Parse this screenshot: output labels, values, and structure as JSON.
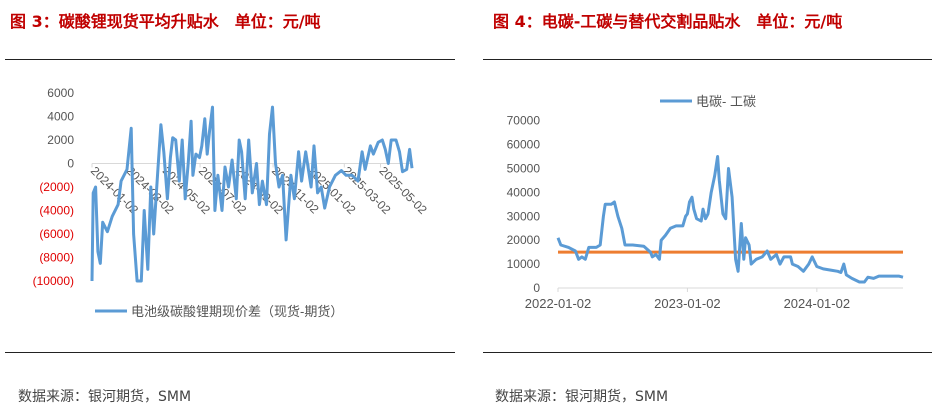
{
  "panels": [
    {
      "title": "图 3：碳酸锂现货平均升贴水　单位：元/吨",
      "source": "数据来源：银河期货，SMM"
    },
    {
      "title": "图 4：电碳-工碳与替代交割品贴水　单位：元/吨",
      "source": "数据来源：银河期货，SMM"
    }
  ],
  "chart_data": [
    {
      "type": "line",
      "ylim": [
        -10000,
        6000
      ],
      "yticks": [
        "6000",
        "4000",
        "2000",
        "0",
        "(2000)",
        "(4000)",
        "(6000)",
        "(8000)",
        "(10000)"
      ],
      "ytick_values": [
        6000,
        4000,
        2000,
        0,
        -2000,
        -4000,
        -6000,
        -8000,
        -10000
      ],
      "negative_tick_color": "#e00000",
      "xticks": [
        "2024-01-02",
        "2024-03-02",
        "2024-05-02",
        "2024-07-02",
        "2024-09-02",
        "2024-11-02",
        "2025-01-02",
        "2025-03-02",
        "2025-05-02"
      ],
      "xlim": [
        "2024-01-02",
        "2025-06-24"
      ],
      "legend": "bottom",
      "series": [
        {
          "name": "电池级碳酸锂期现价差（现货-期货）",
          "color": "#5b9bd5",
          "points": [
            [
              "2024-01-02",
              -10000
            ],
            [
              "2024-01-04",
              -2500
            ],
            [
              "2024-01-08",
              -2000
            ],
            [
              "2024-01-12",
              -7500
            ],
            [
              "2024-01-16",
              -8500
            ],
            [
              "2024-01-20",
              -5000
            ],
            [
              "2024-01-28",
              -5800
            ],
            [
              "2024-02-05",
              -4500
            ],
            [
              "2024-02-15",
              -3500
            ],
            [
              "2024-02-20",
              -1500
            ],
            [
              "2024-03-01",
              -500
            ],
            [
              "2024-03-08",
              3000
            ],
            [
              "2024-03-12",
              -6000
            ],
            [
              "2024-03-18",
              -10000
            ],
            [
              "2024-03-25",
              -10000
            ],
            [
              "2024-03-30",
              -4000
            ],
            [
              "2024-04-05",
              -9000
            ],
            [
              "2024-04-10",
              -2000
            ],
            [
              "2024-04-15",
              -6000
            ],
            [
              "2024-04-22",
              -500
            ],
            [
              "2024-04-27",
              3300
            ],
            [
              "2024-05-02",
              1000
            ],
            [
              "2024-05-08",
              -3000
            ],
            [
              "2024-05-13",
              500
            ],
            [
              "2024-05-17",
              2200
            ],
            [
              "2024-05-22",
              2000
            ],
            [
              "2024-05-28",
              -1500
            ],
            [
              "2024-06-02",
              2000
            ],
            [
              "2024-06-07",
              -3000
            ],
            [
              "2024-06-12",
              0
            ],
            [
              "2024-06-17",
              3600
            ],
            [
              "2024-06-20",
              -1000
            ],
            [
              "2024-06-25",
              800
            ],
            [
              "2024-07-01",
              500
            ],
            [
              "2024-07-05",
              1500
            ],
            [
              "2024-07-10",
              3800
            ],
            [
              "2024-07-14",
              800
            ],
            [
              "2024-07-18",
              2800
            ],
            [
              "2024-07-23",
              4800
            ],
            [
              "2024-07-27",
              -4000
            ],
            [
              "2024-08-01",
              -1000
            ],
            [
              "2024-08-08",
              -4000
            ],
            [
              "2024-08-13",
              -300
            ],
            [
              "2024-08-19",
              -2000
            ],
            [
              "2024-08-25",
              300
            ],
            [
              "2024-09-01",
              -3000
            ],
            [
              "2024-09-06",
              2000
            ],
            [
              "2024-09-10",
              1000
            ],
            [
              "2024-09-16",
              -3000
            ],
            [
              "2024-09-22",
              2000
            ],
            [
              "2024-09-28",
              -2500
            ],
            [
              "2024-10-05",
              0
            ],
            [
              "2024-10-10",
              -3500
            ],
            [
              "2024-10-15",
              -1500
            ],
            [
              "2024-10-22",
              -3500
            ],
            [
              "2024-10-27",
              2500
            ],
            [
              "2024-11-01",
              4800
            ],
            [
              "2024-11-06",
              0
            ],
            [
              "2024-11-12",
              -2000
            ],
            [
              "2024-11-18",
              -1000
            ],
            [
              "2024-11-24",
              -6500
            ],
            [
              "2024-12-02",
              -1000
            ],
            [
              "2024-12-08",
              -3000
            ],
            [
              "2024-12-15",
              1000
            ],
            [
              "2024-12-20",
              -1500
            ],
            [
              "2024-12-27",
              1000
            ],
            [
              "2025-01-05",
              -2000
            ],
            [
              "2025-01-10",
              1500
            ],
            [
              "2025-01-16",
              -2500
            ],
            [
              "2025-01-22",
              -2000
            ],
            [
              "2025-01-28",
              -3800
            ],
            [
              "2025-02-05",
              -2000
            ],
            [
              "2025-02-15",
              -1000
            ],
            [
              "2025-02-25",
              -600
            ],
            [
              "2025-03-05",
              -1000
            ],
            [
              "2025-03-15",
              -1000
            ],
            [
              "2025-03-25",
              -1500
            ],
            [
              "2025-04-01",
              1000
            ],
            [
              "2025-04-06",
              -500
            ],
            [
              "2025-04-15",
              1500
            ],
            [
              "2025-04-20",
              800
            ],
            [
              "2025-04-28",
              1800
            ],
            [
              "2025-05-05",
              2000
            ],
            [
              "2025-05-10",
              1200
            ],
            [
              "2025-05-15",
              0
            ],
            [
              "2025-05-20",
              2000
            ],
            [
              "2025-05-28",
              2000
            ],
            [
              "2025-06-03",
              1000
            ],
            [
              "2025-06-08",
              -700
            ],
            [
              "2025-06-15",
              -500
            ],
            [
              "2025-06-20",
              1200
            ],
            [
              "2025-06-24",
              -400
            ]
          ]
        }
      ]
    },
    {
      "type": "line",
      "ylim": [
        0,
        70000
      ],
      "yticks": [
        "70000",
        "60000",
        "50000",
        "40000",
        "30000",
        "20000",
        "10000",
        "0"
      ],
      "ytick_values": [
        70000,
        60000,
        50000,
        40000,
        30000,
        20000,
        10000,
        0
      ],
      "xticks": [
        "2022-01-02",
        "2023-01-02",
        "2024-01-02"
      ],
      "xlim": [
        "2022-01-02",
        "2024-09-01"
      ],
      "legend": "top",
      "reference_line": {
        "value": 15000,
        "color": "#ed7d31"
      },
      "series": [
        {
          "name": "电碳- 工碳",
          "color": "#5b9bd5",
          "points": [
            [
              "2022-01-02",
              21000
            ],
            [
              "2022-01-10",
              18000
            ],
            [
              "2022-02-01",
              17000
            ],
            [
              "2022-02-20",
              15500
            ],
            [
              "2022-03-01",
              12000
            ],
            [
              "2022-03-10",
              13000
            ],
            [
              "2022-03-20",
              12000
            ],
            [
              "2022-03-30",
              17000
            ],
            [
              "2022-04-20",
              17000
            ],
            [
              "2022-05-01",
              18000
            ],
            [
              "2022-05-10",
              30000
            ],
            [
              "2022-05-15",
              35000
            ],
            [
              "2022-06-01",
              35000
            ],
            [
              "2022-06-10",
              36000
            ],
            [
              "2022-06-20",
              30000
            ],
            [
              "2022-07-01",
              25000
            ],
            [
              "2022-07-10",
              18000
            ],
            [
              "2022-08-01",
              18000
            ],
            [
              "2022-09-01",
              17500
            ],
            [
              "2022-09-20",
              15000
            ],
            [
              "2022-09-25",
              13000
            ],
            [
              "2022-10-05",
              14000
            ],
            [
              "2022-10-15",
              12000
            ],
            [
              "2022-10-20",
              20000
            ],
            [
              "2022-11-01",
              22000
            ],
            [
              "2022-11-15",
              25000
            ],
            [
              "2022-12-01",
              26000
            ],
            [
              "2022-12-20",
              26000
            ],
            [
              "2022-12-28",
              30000
            ],
            [
              "2023-01-02",
              31000
            ],
            [
              "2023-01-08",
              36000
            ],
            [
              "2023-01-15",
              38000
            ],
            [
              "2023-01-20",
              33000
            ],
            [
              "2023-01-28",
              29000
            ],
            [
              "2023-02-10",
              28000
            ],
            [
              "2023-02-15",
              33000
            ],
            [
              "2023-02-22",
              29000
            ],
            [
              "2023-03-01",
              31000
            ],
            [
              "2023-03-10",
              40000
            ],
            [
              "2023-03-20",
              47000
            ],
            [
              "2023-03-28",
              55000
            ],
            [
              "2023-04-02",
              45000
            ],
            [
              "2023-04-12",
              31000
            ],
            [
              "2023-04-20",
              29000
            ],
            [
              "2023-04-28",
              50000
            ],
            [
              "2023-05-08",
              38000
            ],
            [
              "2023-05-18",
              12000
            ],
            [
              "2023-05-25",
              7000
            ],
            [
              "2023-06-03",
              27000
            ],
            [
              "2023-06-10",
              12000
            ],
            [
              "2023-06-15",
              21000
            ],
            [
              "2023-06-25",
              18000
            ],
            [
              "2023-07-01",
              10000
            ],
            [
              "2023-07-15",
              12000
            ],
            [
              "2023-08-01",
              13000
            ],
            [
              "2023-08-15",
              15500
            ],
            [
              "2023-08-25",
              12000
            ],
            [
              "2023-09-10",
              14000
            ],
            [
              "2023-09-20",
              10000
            ],
            [
              "2023-10-01",
              13000
            ],
            [
              "2023-10-20",
              13000
            ],
            [
              "2023-10-25",
              10000
            ],
            [
              "2023-11-10",
              9000
            ],
            [
              "2023-11-25",
              7000
            ],
            [
              "2023-12-10",
              10000
            ],
            [
              "2023-12-20",
              13000
            ],
            [
              "2024-01-02",
              9000
            ],
            [
              "2024-01-20",
              8000
            ],
            [
              "2024-02-10",
              7500
            ],
            [
              "2024-03-01",
              7000
            ],
            [
              "2024-03-10",
              6500
            ],
            [
              "2024-03-18",
              10000
            ],
            [
              "2024-03-25",
              5500
            ],
            [
              "2024-04-10",
              4000
            ],
            [
              "2024-05-01",
              2500
            ],
            [
              "2024-05-15",
              2500
            ],
            [
              "2024-05-25",
              4500
            ],
            [
              "2024-06-10",
              4000
            ],
            [
              "2024-06-25",
              5000
            ],
            [
              "2024-08-20",
              5000
            ],
            [
              "2024-09-01",
              4500
            ]
          ]
        }
      ]
    }
  ]
}
